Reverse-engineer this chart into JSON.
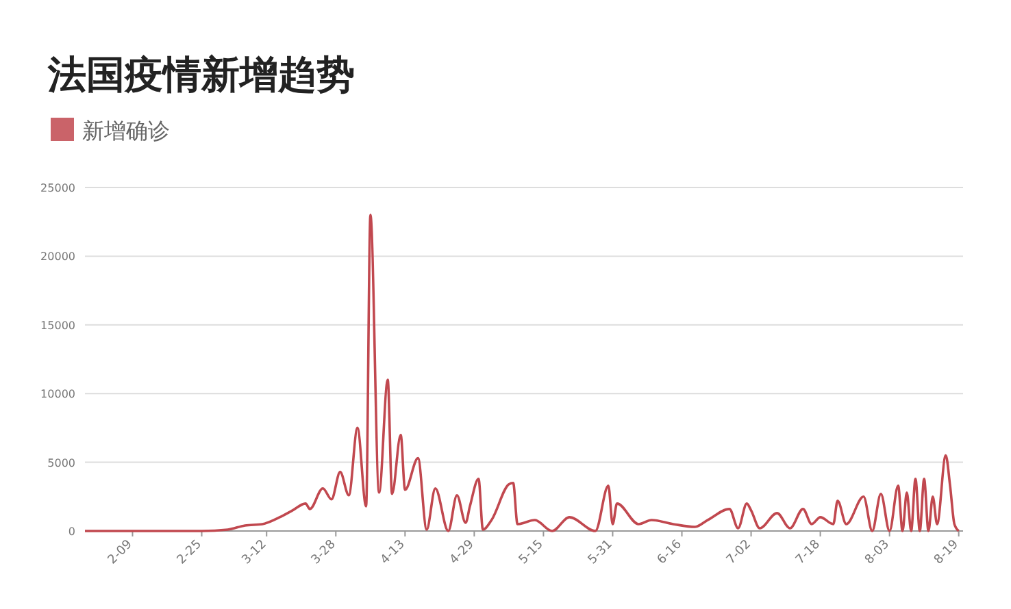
{
  "chart_data": {
    "type": "line",
    "title": "法国疫情新增趋势",
    "legend": "top left",
    "grid": "y",
    "marker": "none",
    "xlim": [
      "--01-29",
      "--08-20"
    ],
    "xticks": [
      {
        "value": "--02-09",
        "label": "2-09"
      },
      {
        "value": "--02-25",
        "label": "2-25"
      },
      {
        "value": "--03-12",
        "label": "3-12"
      },
      {
        "value": "--03-28",
        "label": "3-28"
      },
      {
        "value": "--04-13",
        "label": "4-13"
      },
      {
        "value": "--04-29",
        "label": "4-29"
      },
      {
        "value": "--05-15",
        "label": "5-15"
      },
      {
        "value": "--05-31",
        "label": "5-31"
      },
      {
        "value": "--06-16",
        "label": "6-16"
      },
      {
        "value": "--07-02",
        "label": "7-02"
      },
      {
        "value": "--07-18",
        "label": "7-18"
      },
      {
        "value": "--08-03",
        "label": "8-03"
      },
      {
        "value": "--08-19",
        "label": "8-19"
      }
    ],
    "ylim": [
      0,
      25000
    ],
    "yticks": [
      0,
      5000,
      10000,
      15000,
      20000,
      25000
    ],
    "x": [
      "--01-29",
      "--02-25",
      "--03-03",
      "--03-07",
      "--03-11",
      "--03-15",
      "--03-18",
      "--03-21",
      "--03-22",
      "--03-25",
      "--03-27",
      "--03-29",
      "--03-31",
      "--04-02",
      "--04-04",
      "--04-05",
      "--04-07",
      "--04-09",
      "--04-10",
      "--04-12",
      "--04-13",
      "--04-16",
      "--04-18",
      "--04-20",
      "--04-23",
      "--04-25",
      "--04-27",
      "--04-28",
      "--04-30",
      "--05-01",
      "--05-03",
      "--05-07",
      "--05-08",
      "--05-09",
      "--05-13",
      "--05-17",
      "--05-21",
      "--05-27",
      "--05-30",
      "--05-31",
      "--06-01",
      "--06-06",
      "--06-09",
      "--06-14",
      "--06-19",
      "--06-22",
      "--06-27",
      "--06-29",
      "--07-01",
      "--07-02",
      "--07-04",
      "--07-08",
      "--07-11",
      "--07-14",
      "--07-16",
      "--07-18",
      "--07-21",
      "--07-22",
      "--07-24",
      "--07-28",
      "--07-30",
      "--08-01",
      "--08-03",
      "--08-05",
      "--08-06",
      "--08-07",
      "--08-08",
      "--08-09",
      "--08-10",
      "--08-11",
      "--08-12",
      "--08-13",
      "--08-14",
      "--08-16",
      "--08-17",
      "--08-18",
      "--08-19"
    ],
    "series": [
      {
        "name": "新增确诊",
        "color": "#c1484f",
        "values": [
          0,
          0,
          100,
          400,
          500,
          1000,
          1500,
          2000,
          1600,
          3100,
          2300,
          4300,
          2600,
          7500,
          1800,
          23000,
          2800,
          11000,
          2700,
          7000,
          3000,
          5300,
          100,
          3100,
          0,
          2600,
          600,
          1800,
          3800,
          100,
          800,
          3400,
          3500,
          500,
          800,
          0,
          1000,
          0,
          3300,
          500,
          2000,
          500,
          800,
          500,
          300,
          800,
          1600,
          200,
          2000,
          1500,
          200,
          1300,
          200,
          1600,
          500,
          1000,
          500,
          2200,
          500,
          2500,
          0,
          2700,
          0,
          3300,
          0,
          2800,
          0,
          3800,
          0,
          3800,
          0,
          2500,
          500,
          5500,
          3300,
          500,
          0
        ]
      }
    ]
  }
}
